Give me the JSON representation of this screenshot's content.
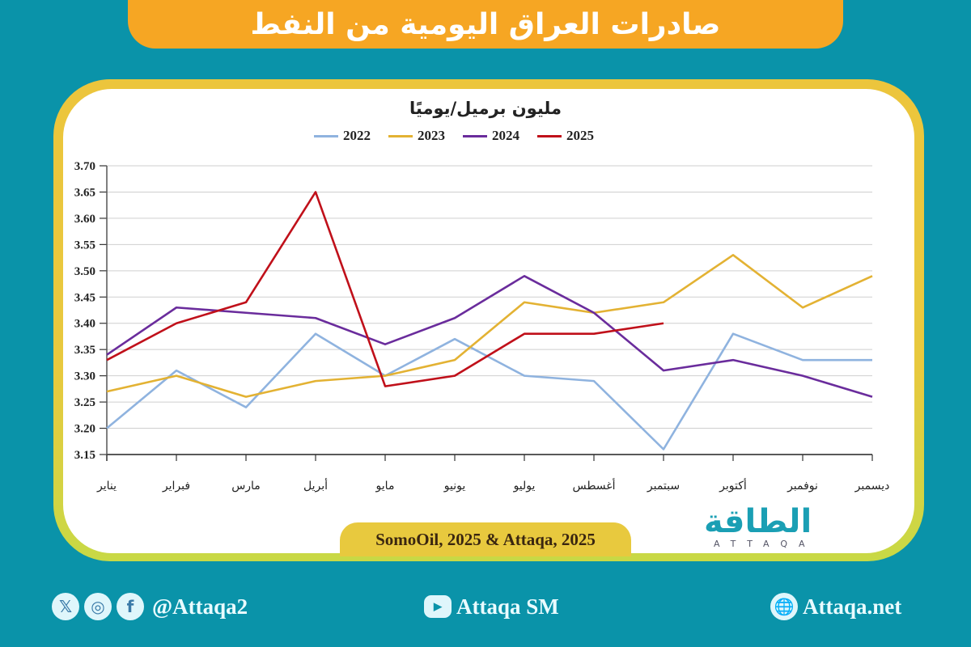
{
  "header": {
    "title": "صادرات العراق اليومية من النفط"
  },
  "chart_meta": {
    "unit_title": "مليون برميل/يوميًا",
    "source": "SomoOil, 2025 & Attaqa, 2025"
  },
  "legend": [
    {
      "label": "2022",
      "color": "#8fb3df"
    },
    {
      "label": "2023",
      "color": "#e3b233"
    },
    {
      "label": "2024",
      "color": "#6a2c9c"
    },
    {
      "label": "2025",
      "color": "#c0101a"
    }
  ],
  "logo": {
    "arabic": "الطاقة",
    "latin": "ATTAQA"
  },
  "footer": {
    "social_handle": "@Attaqa2",
    "youtube": "Attaqa SM",
    "website": "Attaqa.net"
  },
  "chart_data": {
    "type": "line",
    "title": "صادرات العراق اليومية من النفط",
    "subtitle": "مليون برميل/يوميًا",
    "xlabel": "",
    "ylabel": "مليون برميل/يوميًا",
    "categories": [
      "يناير",
      "فبراير",
      "مارس",
      "أبريل",
      "مايو",
      "يونيو",
      "يوليو",
      "أغسطس",
      "سبتمبر",
      "أكتوبر",
      "نوفمبر",
      "ديسمبر"
    ],
    "yticks": [
      "3.15",
      "3.20",
      "3.25",
      "3.30",
      "3.35",
      "3.40",
      "3.45",
      "3.50",
      "3.55",
      "3.60",
      "3.65",
      "3.70"
    ],
    "ylim": [
      3.15,
      3.7
    ],
    "grid": true,
    "legend_position": "top",
    "series": [
      {
        "name": "2022",
        "color": "#8fb3df",
        "values": [
          3.2,
          3.31,
          3.24,
          3.38,
          3.3,
          3.37,
          3.3,
          3.29,
          3.16,
          3.38,
          3.33,
          3.33
        ]
      },
      {
        "name": "2023",
        "color": "#e3b233",
        "values": [
          3.27,
          3.3,
          3.26,
          3.29,
          3.3,
          3.33,
          3.44,
          3.42,
          3.44,
          3.53,
          3.43,
          3.49
        ]
      },
      {
        "name": "2024",
        "color": "#6a2c9c",
        "values": [
          3.34,
          3.43,
          3.42,
          3.41,
          3.36,
          3.41,
          3.49,
          3.42,
          3.31,
          3.33,
          3.3,
          3.26
        ]
      },
      {
        "name": "2025",
        "color": "#c0101a",
        "values": [
          3.33,
          3.4,
          3.44,
          3.65,
          3.28,
          3.3,
          3.38,
          3.38,
          3.4,
          null,
          null,
          null
        ]
      }
    ],
    "source": "SomoOil, 2025 & Attaqa, 2025"
  }
}
